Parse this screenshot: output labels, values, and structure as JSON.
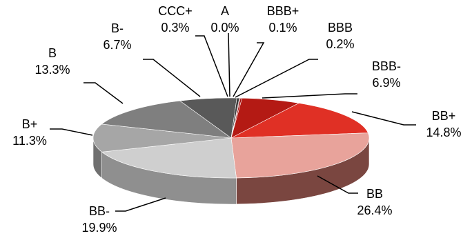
{
  "chart_data": {
    "type": "pie",
    "title": "",
    "slices": [
      {
        "label": "A",
        "value": 0.0,
        "text": "0.0%",
        "color": "#7a0000",
        "side": "#4a0000"
      },
      {
        "label": "BBB+",
        "value": 0.1,
        "text": "0.1%",
        "color": "#8c0a0a",
        "side": "#550606"
      },
      {
        "label": "BBB",
        "value": 0.2,
        "text": "0.2%",
        "color": "#9e1010",
        "side": "#600909"
      },
      {
        "label": "BBB-",
        "value": 6.9,
        "text": "6.9%",
        "color": "#b41a14",
        "side": "#6e0f0b"
      },
      {
        "label": "BB+",
        "value": 14.8,
        "text": "14.8%",
        "color": "#e03025",
        "side": "#8a1c16"
      },
      {
        "label": "BB",
        "value": 26.4,
        "text": "26.4%",
        "color": "#e8a39b",
        "side": "#7a4640"
      },
      {
        "label": "BB-",
        "value": 19.9,
        "text": "19.9%",
        "color": "#cfcfcf",
        "side": "#8f8f8f"
      },
      {
        "label": "B+",
        "value": 11.3,
        "text": "11.3%",
        "color": "#a6a6a6",
        "side": "#707070"
      },
      {
        "label": "B",
        "value": 13.3,
        "text": "13.3%",
        "color": "#7f7f7f",
        "side": "#555555"
      },
      {
        "label": "B-",
        "value": 6.7,
        "text": "6.7%",
        "color": "#595959",
        "side": "#3a3a3a"
      },
      {
        "label": "CCC+",
        "value": 0.3,
        "text": "0.3%",
        "color": "#3a3a3a",
        "side": "#222222"
      }
    ],
    "legend": "none",
    "style": "3d-exploded-none"
  }
}
